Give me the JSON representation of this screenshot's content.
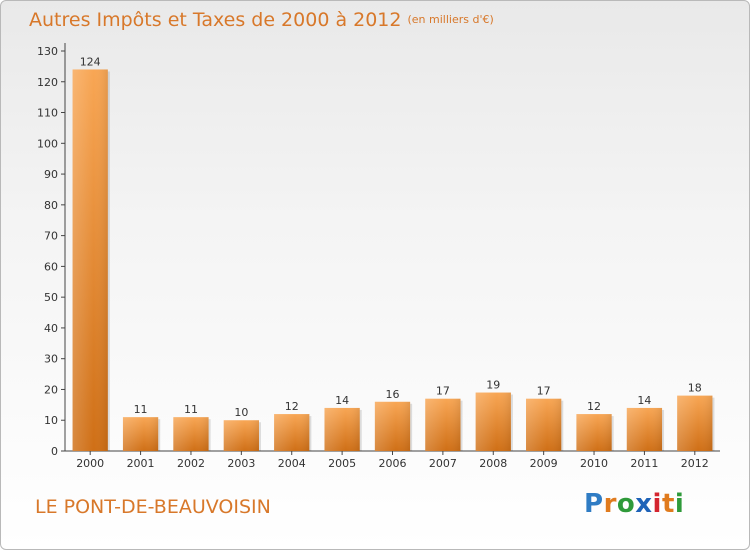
{
  "title": "Autres Impôts et Taxes de 2000 à 2012",
  "subtitle": "(en milliers d'€)",
  "footer_label": "LE PONT-DE-BEAUVOISIN",
  "logo": {
    "letters": [
      "P",
      "r",
      "o",
      "x",
      "i",
      "t",
      "i"
    ],
    "colors": [
      "#2f7cc4",
      "#e07b1e",
      "#2f9a3a",
      "#1e63b8",
      "#d4252f",
      "#e07b1e",
      "#2f9a3a"
    ]
  },
  "colors": {
    "bar_light": "#f8a654",
    "bar_dark": "#cf6f16",
    "text_accent": "#d8782a"
  },
  "chart_data": {
    "type": "bar",
    "title": "Autres Impôts et Taxes de 2000 à 2012",
    "subtitle": "(en milliers d'€)",
    "categories": [
      "2000",
      "2001",
      "2002",
      "2003",
      "2004",
      "2005",
      "2006",
      "2007",
      "2008",
      "2009",
      "2010",
      "2011",
      "2012"
    ],
    "values": [
      124,
      11,
      11,
      10,
      12,
      14,
      16,
      17,
      19,
      17,
      12,
      14,
      18
    ],
    "data_labels": [
      "124",
      "11",
      "11",
      "10",
      "12",
      "14",
      "16",
      "17",
      "19",
      "17",
      "12",
      "14",
      "18"
    ],
    "yticks": [
      0,
      10,
      20,
      30,
      40,
      50,
      60,
      70,
      80,
      90,
      100,
      110,
      120,
      130
    ],
    "ylim": [
      0,
      130
    ],
    "grid": false,
    "legend": "none"
  }
}
